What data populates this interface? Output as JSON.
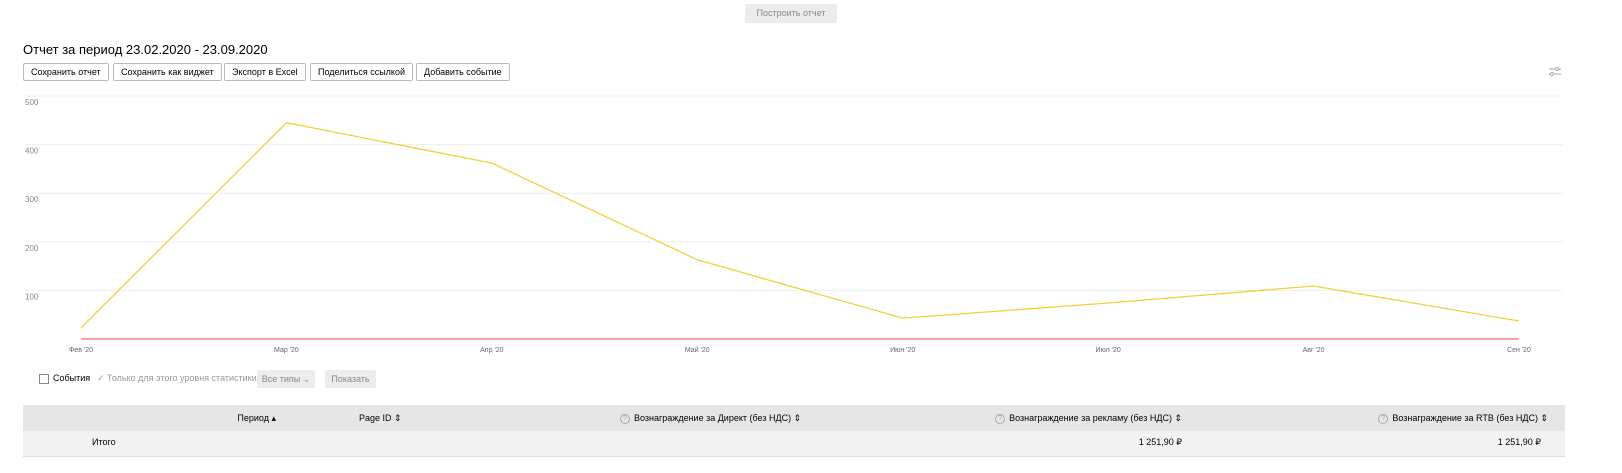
{
  "top_button": "Построить отчет",
  "header": {
    "title": "Отчет за период 23.02.2020 - 23.09.2020"
  },
  "toolbar": [
    "Сохранить отчет",
    "Сохранить как виджет",
    "Экспорт в Excel",
    "Поделиться ссылкой",
    "Добавить событие"
  ],
  "chart_data": {
    "type": "line",
    "categories": [
      "Фев '20",
      "Мар '20",
      "Апр '20",
      "Май '20",
      "Июн '20",
      "Июл '20",
      "Авг '20",
      "Сен '20"
    ],
    "series": [
      {
        "color": "#f2cf3c",
        "values": [
          23,
          445,
          362,
          163,
          43,
          74,
          109,
          37
        ]
      },
      {
        "color": "#f36b6b",
        "values": [
          0,
          0,
          0,
          0,
          0,
          0,
          0,
          0
        ]
      }
    ],
    "ylim": [
      0,
      500
    ],
    "yticks": [
      100,
      200,
      300,
      400,
      500
    ],
    "grid": true
  },
  "filters": {
    "events": "События",
    "level_only": "Только для этого уровня статистики",
    "types": "Все типы",
    "show": "Показать"
  },
  "table": {
    "columns": [
      "Период",
      "Page ID",
      "Вознаграждение за Директ (без НДС)",
      "Вознаграждение за рекламу (без НДС)",
      "Вознаграждение за RTB (без НДС)"
    ],
    "total": [
      "Итого",
      "1 251,90 ₽",
      "1 251,90 ₽"
    ]
  }
}
